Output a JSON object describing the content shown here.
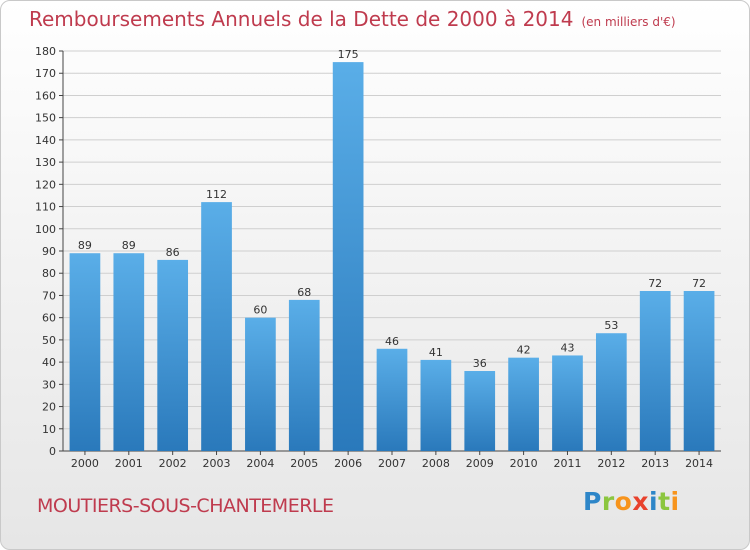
{
  "header": {
    "title": "Remboursements Annuels de la Dette de 2000 à 2014",
    "unit_note": "(en milliers d'€)"
  },
  "footer": {
    "commune": "MOUTIERS-SOUS-CHANTEMERLE"
  },
  "logo": {
    "text": "Proxiti",
    "letters": [
      {
        "char": "P",
        "color": "#2e86c8"
      },
      {
        "char": "r",
        "color": "#8cc63f"
      },
      {
        "char": "o",
        "color": "#f7941d"
      },
      {
        "char": "x",
        "color": "#e8412c"
      },
      {
        "char": "i",
        "color": "#2e86c8"
      },
      {
        "char": "t",
        "color": "#8cc63f"
      },
      {
        "char": "i",
        "color": "#f7941d"
      }
    ]
  },
  "colors": {
    "bar_top": "#5aaee8",
    "bar_bottom": "#2a79bb",
    "title": "#bf3b4e",
    "grid": "#cfcfcf"
  },
  "chart_data": {
    "type": "bar",
    "title": "Remboursements Annuels de la Dette de 2000 à 2014",
    "subtitle": "(en milliers d'€)",
    "xlabel": "",
    "ylabel": "",
    "categories": [
      "2000",
      "2001",
      "2002",
      "2003",
      "2004",
      "2005",
      "2006",
      "2007",
      "2008",
      "2009",
      "2010",
      "2011",
      "2012",
      "2013",
      "2014"
    ],
    "values": [
      89,
      89,
      86,
      112,
      60,
      68,
      175,
      46,
      41,
      36,
      42,
      43,
      53,
      72,
      72
    ],
    "ylim": [
      0,
      180
    ],
    "yticks": [
      0,
      10,
      20,
      30,
      40,
      50,
      60,
      70,
      80,
      90,
      100,
      110,
      120,
      130,
      140,
      150,
      160,
      170,
      180
    ],
    "grid": true,
    "data_labels": true
  }
}
